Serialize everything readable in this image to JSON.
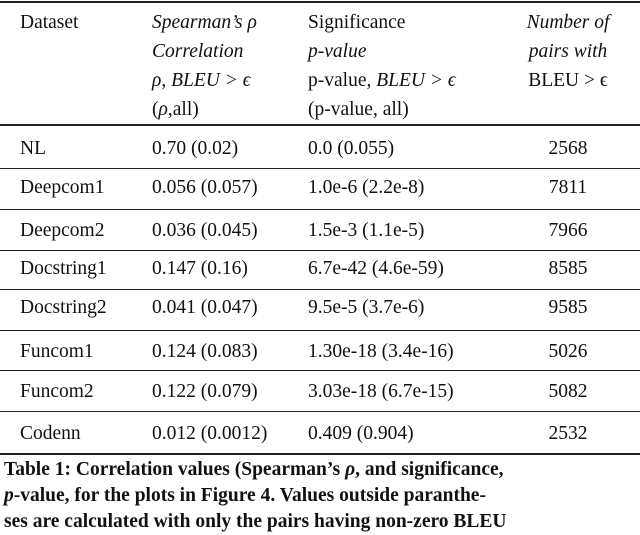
{
  "table": {
    "header": [
      [
        [
          {
            "text": "Dataset"
          }
        ]
      ],
      [
        [
          {
            "text": "Spearman’s ρ",
            "italic": true
          }
        ],
        [
          {
            "text": "Correlation",
            "italic": true
          }
        ],
        [
          {
            "text": "ρ, BLEU > ϵ",
            "italic": true
          }
        ],
        [
          {
            "text": "("
          },
          {
            "text": "ρ",
            "italic": true
          },
          {
            "text": ",all)"
          }
        ]
      ],
      [
        [
          {
            "text": "Significance"
          }
        ],
        [
          {
            "text": "p-value",
            "italic": true
          }
        ],
        [
          {
            "text": "p-value, "
          },
          {
            "text": "BLEU > ϵ",
            "italic": true
          }
        ],
        [
          {
            "text": "(p-value, all)"
          }
        ]
      ],
      [
        [
          {
            "text": "Number of",
            "italic": true
          }
        ],
        [
          {
            "text": "pairs with",
            "italic": true
          }
        ],
        [
          {
            "text": "BLEU > ϵ"
          }
        ]
      ]
    ],
    "rows": [
      [
        "NL",
        "0.70 (0.02)",
        "0.0 (0.055)",
        "2568"
      ],
      [
        "Deepcom1",
        "0.056 (0.057)",
        "1.0e-6 (2.2e-8)",
        "7811"
      ],
      [
        "Deepcom2",
        "0.036 (0.045)",
        "1.5e-3 (1.1e-5)",
        "7966"
      ],
      [
        "Docstring1",
        "0.147 (0.16)",
        "6.7e-42 (4.6e-59)",
        "8585"
      ],
      [
        "Docstring2",
        "0.041 (0.047)",
        "9.5e-5 (3.7e-6)",
        "9585"
      ],
      [
        "Funcom1",
        "0.124 (0.083)",
        "1.30e-18 (3.4e-16)",
        "5026"
      ],
      [
        "Funcom2",
        "0.122 (0.079)",
        "3.03e-18 (6.7e-15)",
        "5082"
      ],
      [
        "Codenn",
        "0.012 (0.0012)",
        "0.409 (0.904)",
        "2532"
      ]
    ]
  },
  "caption": [
    [
      {
        "text": "Table 1: Correlation values (Spearman’s "
      },
      {
        "text": "ρ",
        "italic": true
      },
      {
        "text": ", and significance,"
      }
    ],
    [
      {
        "text": "p",
        "italic": true
      },
      {
        "text": "-value, for the plots in Figure 4. Values outside paranthe-"
      }
    ],
    [
      {
        "text": "ses are calculated with only the pairs having non-zero BLEU"
      }
    ]
  ]
}
